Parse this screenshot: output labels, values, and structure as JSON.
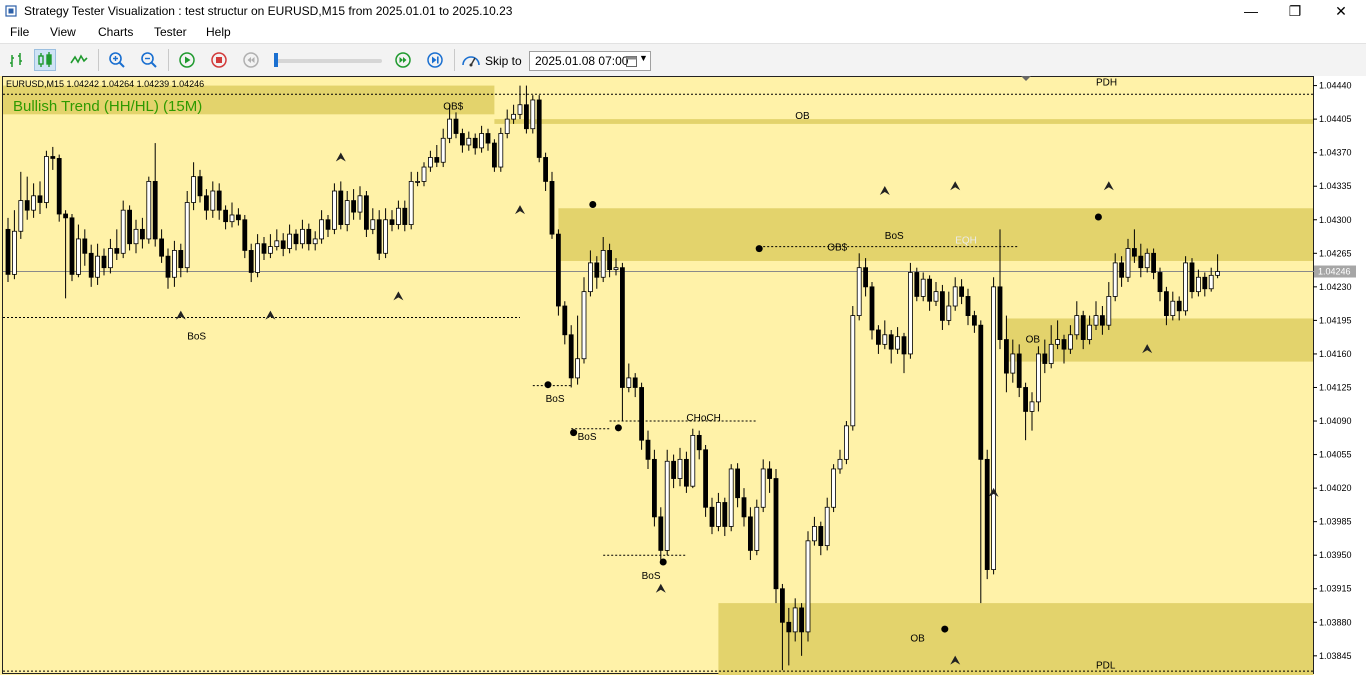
{
  "window": {
    "title": "Strategy Tester Visualization : test structur on EURUSD,M15 from 2025.01.01 to 2025.10.23",
    "minimize": "—",
    "maximize": "❐",
    "close": "✕"
  },
  "menu": {
    "file": "File",
    "view": "View",
    "charts": "Charts",
    "tester": "Tester",
    "help": "Help"
  },
  "toolbar": {
    "skip_label": "Skip to",
    "skip_value": "2025.01.08 07:00",
    "icons": [
      "bar-chart-icon",
      "candlestick-icon",
      "line-chart-icon",
      "zoom-in-icon",
      "zoom-out-icon",
      "play-icon",
      "stop-icon",
      "rewind-icon",
      "fast-forward-icon",
      "skip-end-icon",
      "speed-icon",
      "calendar-icon"
    ]
  },
  "chart_data": {
    "type": "candlestick",
    "symbol_info": "EURUSD,M15  1.04242 1.04264 1.04239 1.04246",
    "trend_label": "Bullish Trend (HH/HL) (15M)",
    "current_price": "1.04246",
    "ylim": [
      1.03825,
      1.0445
    ],
    "y_ticks": [
      "1.04440",
      "1.04405",
      "1.04370",
      "1.04335",
      "1.04300",
      "1.04265",
      "1.04230",
      "1.04195",
      "1.04160",
      "1.04125",
      "1.04090",
      "1.04055",
      "1.04020",
      "1.03985",
      "1.03950",
      "1.03915",
      "1.03880",
      "1.03845"
    ],
    "colors": {
      "background": "#fff2a8",
      "zone": "#e3d36c",
      "bull_body": "#ffffff",
      "bear_body": "#000000",
      "current_line": "#8a8a8a",
      "bid_box": "#a6a6a6",
      "trend_text": "#2e9a00",
      "eqh_text": "#eaeaea"
    },
    "zones": [
      {
        "label": "",
        "x0": 0,
        "x1": 76,
        "top": 1.0444,
        "bottom": 1.0441
      },
      {
        "label": "OB",
        "x0": 76,
        "x1": 188,
        "top": 1.04405,
        "bottom": 1.044
      },
      {
        "label": "OB$",
        "x0": 86,
        "x1": 188,
        "top": 1.04312,
        "bottom": 1.04257
      },
      {
        "label": "OB",
        "x0": 156,
        "x1": 188,
        "top": 1.04197,
        "bottom": 1.04152
      },
      {
        "label": "OB",
        "x0": 111,
        "x1": 188,
        "top": 1.039,
        "bottom": 1.03825
      }
    ],
    "labels": [
      {
        "text": "OB$",
        "bar": 68,
        "price": 1.04415
      },
      {
        "text": "OB",
        "bar": 123,
        "price": 1.04405
      },
      {
        "text": "OB$",
        "bar": 128,
        "price": 1.04268
      },
      {
        "text": "BoS",
        "bar": 137,
        "price": 1.0428
      },
      {
        "text": "EQH",
        "bar": 148,
        "price": 1.04275
      },
      {
        "text": "BoS",
        "bar": 28,
        "price": 1.04175
      },
      {
        "text": "OB",
        "bar": 159,
        "price": 1.04172
      },
      {
        "text": "BoS",
        "bar": 84,
        "price": 1.0411
      },
      {
        "text": "BoS",
        "bar": 89,
        "price": 1.0407
      },
      {
        "text": "CHoCH",
        "bar": 106,
        "price": 1.0409
      },
      {
        "text": "BoS",
        "bar": 99,
        "price": 1.03925
      },
      {
        "text": "OB",
        "bar": 141,
        "price": 1.0386
      },
      {
        "text": "PDH",
        "bar": 170,
        "price": 1.0444
      },
      {
        "text": "PDL",
        "bar": 170,
        "price": 1.03832
      }
    ],
    "level_lines": [
      {
        "price": 1.04431,
        "from_bar": 0,
        "to_bar": 188,
        "style": "dashed"
      },
      {
        "price": 1.04198,
        "from_bar": 0,
        "to_bar": 80,
        "style": "dashed"
      },
      {
        "price": 1.04127,
        "from_bar": 82,
        "to_bar": 88,
        "style": "dashed"
      },
      {
        "price": 1.04082,
        "from_bar": 88,
        "to_bar": 94,
        "style": "dashed"
      },
      {
        "price": 1.0409,
        "from_bar": 94,
        "to_bar": 117,
        "style": "dashed"
      },
      {
        "price": 1.0395,
        "from_bar": 93,
        "to_bar": 106,
        "style": "dashed"
      },
      {
        "price": 1.04272,
        "from_bar": 118,
        "to_bar": 158,
        "style": "dashed"
      },
      {
        "price": 1.03829,
        "from_bar": 0,
        "to_bar": 188,
        "style": "dashed"
      }
    ],
    "candles": [
      [
        1.0429,
        1.04243,
        1.04302,
        1.04235
      ],
      [
        1.04243,
        1.04288,
        1.0431,
        1.04238
      ],
      [
        1.04288,
        1.0432,
        1.0435,
        1.0428
      ],
      [
        1.0432,
        1.0431,
        1.04345,
        1.043
      ],
      [
        1.0431,
        1.04325,
        1.04338,
        1.04302
      ],
      [
        1.04325,
        1.04318,
        1.0434,
        1.04306
      ],
      [
        1.04318,
        1.04366,
        1.04372,
        1.04312
      ],
      [
        1.04366,
        1.04364,
        1.04376,
        1.04352
      ],
      [
        1.04364,
        1.04306,
        1.04368,
        1.04298
      ],
      [
        1.04306,
        1.04302,
        1.0431,
        1.04218
      ],
      [
        1.04302,
        1.04243,
        1.04306,
        1.04236
      ],
      [
        1.04243,
        1.0428,
        1.04295,
        1.0424
      ],
      [
        1.0428,
        1.04265,
        1.0429,
        1.04252
      ],
      [
        1.04265,
        1.0424,
        1.04274,
        1.0423
      ],
      [
        1.0424,
        1.04262,
        1.04275,
        1.04232
      ],
      [
        1.04262,
        1.0425,
        1.0427,
        1.04242
      ],
      [
        1.0425,
        1.0427,
        1.0428,
        1.04244
      ],
      [
        1.0427,
        1.04265,
        1.0429,
        1.04258
      ],
      [
        1.04265,
        1.0431,
        1.0432,
        1.0426
      ],
      [
        1.0431,
        1.04275,
        1.04315,
        1.04268
      ],
      [
        1.04275,
        1.0429,
        1.043,
        1.04265
      ],
      [
        1.0429,
        1.0428,
        1.04302,
        1.0427
      ],
      [
        1.0428,
        1.0434,
        1.04345,
        1.04275
      ],
      [
        1.0434,
        1.0428,
        1.0438,
        1.04272
      ],
      [
        1.0428,
        1.04262,
        1.0429,
        1.04255
      ],
      [
        1.04262,
        1.0424,
        1.0427,
        1.04228
      ],
      [
        1.0424,
        1.04268,
        1.04278,
        1.0423
      ],
      [
        1.04268,
        1.0425,
        1.04275,
        1.0424
      ],
      [
        1.0425,
        1.04318,
        1.0433,
        1.04245
      ],
      [
        1.04318,
        1.04345,
        1.0436,
        1.0431
      ],
      [
        1.04345,
        1.04325,
        1.04352,
        1.04318
      ],
      [
        1.04325,
        1.0431,
        1.04332,
        1.043
      ],
      [
        1.0431,
        1.0433,
        1.0434,
        1.04302
      ],
      [
        1.0433,
        1.0431,
        1.04338,
        1.043
      ],
      [
        1.0431,
        1.04298,
        1.04315,
        1.0429
      ],
      [
        1.04298,
        1.04305,
        1.04318,
        1.04292
      ],
      [
        1.04305,
        1.043,
        1.04312,
        1.04294
      ],
      [
        1.043,
        1.04268,
        1.04305,
        1.0426
      ],
      [
        1.04268,
        1.04245,
        1.04275,
        1.04235
      ],
      [
        1.04245,
        1.04275,
        1.04285,
        1.0424
      ],
      [
        1.04275,
        1.04265,
        1.04282,
        1.04258
      ],
      [
        1.04265,
        1.04272,
        1.04285,
        1.0426
      ],
      [
        1.04272,
        1.04278,
        1.0429,
        1.04268
      ],
      [
        1.04278,
        1.0427,
        1.04286,
        1.04262
      ],
      [
        1.0427,
        1.04285,
        1.04295,
        1.04265
      ],
      [
        1.04285,
        1.04275,
        1.0429,
        1.04268
      ],
      [
        1.04275,
        1.0429,
        1.043,
        1.0427
      ],
      [
        1.0429,
        1.04275,
        1.04296,
        1.04268
      ],
      [
        1.04275,
        1.0428,
        1.04288,
        1.04268
      ],
      [
        1.0428,
        1.043,
        1.0431,
        1.04275
      ],
      [
        1.043,
        1.0429,
        1.04305,
        1.04282
      ],
      [
        1.0429,
        1.0433,
        1.04338,
        1.04285
      ],
      [
        1.0433,
        1.04295,
        1.0434,
        1.0429
      ],
      [
        1.04295,
        1.0432,
        1.0433,
        1.04288
      ],
      [
        1.0432,
        1.04308,
        1.04332,
        1.043
      ],
      [
        1.04308,
        1.04325,
        1.04335,
        1.043
      ],
      [
        1.04325,
        1.0429,
        1.0433,
        1.04282
      ],
      [
        1.0429,
        1.043,
        1.04312,
        1.04285
      ],
      [
        1.043,
        1.04265,
        1.0431,
        1.04258
      ],
      [
        1.04265,
        1.043,
        1.04312,
        1.0426
      ],
      [
        1.043,
        1.04295,
        1.0431,
        1.04288
      ],
      [
        1.04295,
        1.04312,
        1.0432,
        1.0429
      ],
      [
        1.04312,
        1.04295,
        1.0432,
        1.04288
      ],
      [
        1.04295,
        1.0434,
        1.0435,
        1.0429
      ],
      [
        1.0434,
        1.0434,
        1.0435,
        1.04335
      ],
      [
        1.0434,
        1.04355,
        1.0436,
        1.04335
      ],
      [
        1.04355,
        1.04365,
        1.04372,
        1.0435
      ],
      [
        1.04365,
        1.0436,
        1.04378,
        1.04355
      ],
      [
        1.0436,
        1.04385,
        1.04395,
        1.04355
      ],
      [
        1.04385,
        1.04405,
        1.0442,
        1.0438
      ],
      [
        1.04405,
        1.0439,
        1.04412,
        1.04385
      ],
      [
        1.0439,
        1.04378,
        1.04395,
        1.0437
      ],
      [
        1.04378,
        1.04385,
        1.04392,
        1.04372
      ],
      [
        1.04385,
        1.04375,
        1.0439,
        1.04368
      ],
      [
        1.04375,
        1.0439,
        1.04398,
        1.0437
      ],
      [
        1.0439,
        1.0438,
        1.04395,
        1.04372
      ],
      [
        1.0438,
        1.04355,
        1.04384,
        1.0435
      ],
      [
        1.04355,
        1.0439,
        1.04396,
        1.0435
      ],
      [
        1.0439,
        1.04405,
        1.04415,
        1.04385
      ],
      [
        1.04405,
        1.0441,
        1.0442,
        1.044
      ],
      [
        1.0441,
        1.0442,
        1.0444,
        1.04405
      ],
      [
        1.0442,
        1.04395,
        1.0444,
        1.0439
      ],
      [
        1.04395,
        1.04425,
        1.0443,
        1.0439
      ],
      [
        1.04425,
        1.04365,
        1.0443,
        1.0436
      ],
      [
        1.04365,
        1.0434,
        1.0437,
        1.0433
      ],
      [
        1.0434,
        1.04285,
        1.0435,
        1.0428
      ],
      [
        1.04285,
        1.0421,
        1.0429,
        1.042
      ],
      [
        1.0421,
        1.0418,
        1.04215,
        1.0417
      ],
      [
        1.0418,
        1.04135,
        1.0419,
        1.04125
      ],
      [
        1.04135,
        1.04155,
        1.042,
        1.04128
      ],
      [
        1.04155,
        1.04225,
        1.0424,
        1.0415
      ],
      [
        1.04225,
        1.04255,
        1.04268,
        1.0422
      ],
      [
        1.04255,
        1.0424,
        1.04262,
        1.04228
      ],
      [
        1.0424,
        1.04268,
        1.04282,
        1.04235
      ],
      [
        1.04268,
        1.04248,
        1.04275,
        1.0424
      ],
      [
        1.04248,
        1.0425,
        1.0426,
        1.04242
      ],
      [
        1.0425,
        1.04125,
        1.04255,
        1.0409
      ],
      [
        1.04125,
        1.04135,
        1.0415,
        1.0412
      ],
      [
        1.04135,
        1.04125,
        1.0414,
        1.04115
      ],
      [
        1.04125,
        1.0407,
        1.0413,
        1.0406
      ],
      [
        1.0407,
        1.0405,
        1.0408,
        1.0404
      ],
      [
        1.0405,
        1.0399,
        1.0406,
        1.0398
      ],
      [
        1.0399,
        1.03955,
        1.04,
        1.03945
      ],
      [
        1.03955,
        1.04048,
        1.0406,
        1.0395
      ],
      [
        1.04048,
        1.0403,
        1.04055,
        1.0402
      ],
      [
        1.0403,
        1.0405,
        1.04062,
        1.04022
      ],
      [
        1.0405,
        1.04022,
        1.04058,
        1.04015
      ],
      [
        1.04022,
        1.04075,
        1.04082,
        1.0402
      ],
      [
        1.04075,
        1.0406,
        1.0408,
        1.0405
      ],
      [
        1.0406,
        1.04,
        1.04065,
        1.0399
      ],
      [
        1.04,
        1.0398,
        1.0401,
        1.03972
      ],
      [
        1.0398,
        1.04005,
        1.04015,
        1.03975
      ],
      [
        1.04005,
        1.0398,
        1.0401,
        1.0397
      ],
      [
        1.0398,
        1.0404,
        1.04045,
        1.03975
      ],
      [
        1.0404,
        1.0401,
        1.04046,
        1.04
      ],
      [
        1.0401,
        1.0399,
        1.0402,
        1.0398
      ],
      [
        1.0399,
        1.03955,
        1.04,
        1.03945
      ],
      [
        1.03955,
        1.04,
        1.04008,
        1.0395
      ],
      [
        1.04,
        1.0404,
        1.0405,
        1.03995
      ],
      [
        1.0404,
        1.0403,
        1.04048,
        1.04015
      ],
      [
        1.0403,
        1.03915,
        1.0404,
        1.039
      ],
      [
        1.03915,
        1.0388,
        1.0392,
        1.0383
      ],
      [
        1.0388,
        1.0387,
        1.03895,
        1.03835
      ],
      [
        1.0387,
        1.03895,
        1.03905,
        1.0386
      ],
      [
        1.03895,
        1.0387,
        1.039,
        1.03845
      ],
      [
        1.0387,
        1.03965,
        1.03975,
        1.0386
      ],
      [
        1.03965,
        1.0398,
        1.0399,
        1.0396
      ],
      [
        1.0398,
        1.0396,
        1.03985,
        1.0395
      ],
      [
        1.0396,
        1.04,
        1.0401,
        1.03955
      ],
      [
        1.04,
        1.0404,
        1.04045,
        1.03995
      ],
      [
        1.0404,
        1.0405,
        1.0406,
        1.04035
      ],
      [
        1.0405,
        1.04085,
        1.0409,
        1.04045
      ],
      [
        1.04085,
        1.042,
        1.0421,
        1.0408
      ],
      [
        1.042,
        1.0425,
        1.04265,
        1.04195
      ],
      [
        1.0425,
        1.0423,
        1.0426,
        1.0422
      ],
      [
        1.0423,
        1.04185,
        1.04235,
        1.04175
      ],
      [
        1.04185,
        1.0417,
        1.0419,
        1.0416
      ],
      [
        1.0417,
        1.0418,
        1.04195,
        1.04165
      ],
      [
        1.0418,
        1.04165,
        1.04185,
        1.0415
      ],
      [
        1.04165,
        1.04178,
        1.04188,
        1.0416
      ],
      [
        1.04178,
        1.0416,
        1.04182,
        1.0414
      ],
      [
        1.0416,
        1.04245,
        1.04255,
        1.04155
      ],
      [
        1.04245,
        1.0422,
        1.0425,
        1.04215
      ],
      [
        1.0422,
        1.04238,
        1.04245,
        1.04215
      ],
      [
        1.04238,
        1.04215,
        1.04242,
        1.04205
      ],
      [
        1.04215,
        1.04225,
        1.04235,
        1.0421
      ],
      [
        1.04225,
        1.04195,
        1.04232,
        1.04185
      ],
      [
        1.04195,
        1.0421,
        1.04225,
        1.0419
      ],
      [
        1.0421,
        1.0423,
        1.0424,
        1.04205
      ],
      [
        1.0423,
        1.0422,
        1.04238,
        1.04212
      ],
      [
        1.0422,
        1.042,
        1.04228,
        1.0419
      ],
      [
        1.042,
        1.0419,
        1.04205,
        1.04182
      ],
      [
        1.0419,
        1.0405,
        1.04195,
        1.039
      ],
      [
        1.0405,
        1.03935,
        1.0406,
        1.03925
      ],
      [
        1.03935,
        1.0423,
        1.0424,
        1.0393
      ],
      [
        1.0423,
        1.04175,
        1.0429,
        1.04165
      ],
      [
        1.04175,
        1.0414,
        1.042,
        1.0412
      ],
      [
        1.0414,
        1.0416,
        1.04175,
        1.0413
      ],
      [
        1.0416,
        1.04125,
        1.0417,
        1.04115
      ],
      [
        1.04125,
        1.041,
        1.0413,
        1.0407
      ],
      [
        1.041,
        1.0411,
        1.0412,
        1.0408
      ],
      [
        1.0411,
        1.0416,
        1.04168,
        1.041
      ],
      [
        1.0416,
        1.0415,
        1.04175,
        1.0414
      ],
      [
        1.0415,
        1.0417,
        1.0419,
        1.04145
      ],
      [
        1.0417,
        1.04175,
        1.04195,
        1.04165
      ],
      [
        1.04175,
        1.04165,
        1.0418,
        1.0415
      ],
      [
        1.04165,
        1.0418,
        1.0419,
        1.0416
      ],
      [
        1.0418,
        1.042,
        1.04215,
        1.04175
      ],
      [
        1.042,
        1.04175,
        1.04205,
        1.04165
      ],
      [
        1.04175,
        1.0419,
        1.042,
        1.0417
      ],
      [
        1.0419,
        1.042,
        1.04215,
        1.04185
      ],
      [
        1.042,
        1.0419,
        1.0421,
        1.0418
      ],
      [
        1.0419,
        1.0422,
        1.04235,
        1.04185
      ],
      [
        1.0422,
        1.04255,
        1.04265,
        1.04215
      ],
      [
        1.04255,
        1.0424,
        1.04262,
        1.0423
      ],
      [
        1.0424,
        1.0427,
        1.0428,
        1.04235
      ],
      [
        1.0427,
        1.04262,
        1.0429,
        1.04255
      ],
      [
        1.04262,
        1.0425,
        1.04275,
        1.0424
      ],
      [
        1.0425,
        1.04265,
        1.0427,
        1.04245
      ],
      [
        1.04265,
        1.04245,
        1.0427,
        1.04238
      ],
      [
        1.04245,
        1.04225,
        1.0425,
        1.04215
      ],
      [
        1.04225,
        1.042,
        1.0423,
        1.0419
      ],
      [
        1.042,
        1.04215,
        1.04225,
        1.04195
      ],
      [
        1.04215,
        1.04205,
        1.0422,
        1.04195
      ],
      [
        1.04205,
        1.04255,
        1.04262,
        1.042
      ],
      [
        1.04255,
        1.04225,
        1.0426,
        1.04218
      ],
      [
        1.04225,
        1.0424,
        1.04248,
        1.0422
      ],
      [
        1.0424,
        1.04228,
        1.04245,
        1.0422
      ],
      [
        1.04228,
        1.04242,
        1.0425,
        1.04225
      ],
      [
        1.04242,
        1.04246,
        1.04264,
        1.04239
      ]
    ]
  }
}
